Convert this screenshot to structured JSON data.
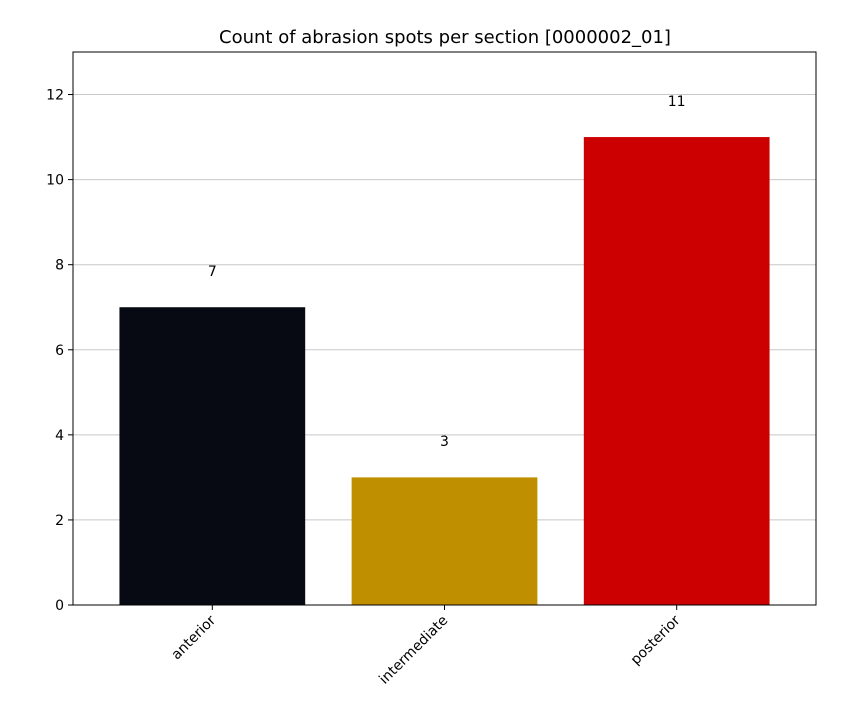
{
  "chart_data": {
    "type": "bar",
    "title": "Count of abrasion spots per section [0000002_01]",
    "xlabel": "",
    "ylabel": "",
    "categories": [
      "anterior",
      "intermediate",
      "posterior"
    ],
    "values": [
      7,
      3,
      11
    ],
    "data_labels": [
      "7",
      "3",
      "11"
    ],
    "colors": [
      "#070a12",
      "#bf8f00",
      "#cc0000"
    ],
    "ylim": [
      0,
      13
    ],
    "yticks": [
      0,
      2,
      4,
      6,
      8,
      10,
      12
    ],
    "ytick_labels": [
      "0",
      "2",
      "4",
      "6",
      "8",
      "10",
      "12"
    ],
    "grid": "horizontal",
    "legend": "none"
  }
}
